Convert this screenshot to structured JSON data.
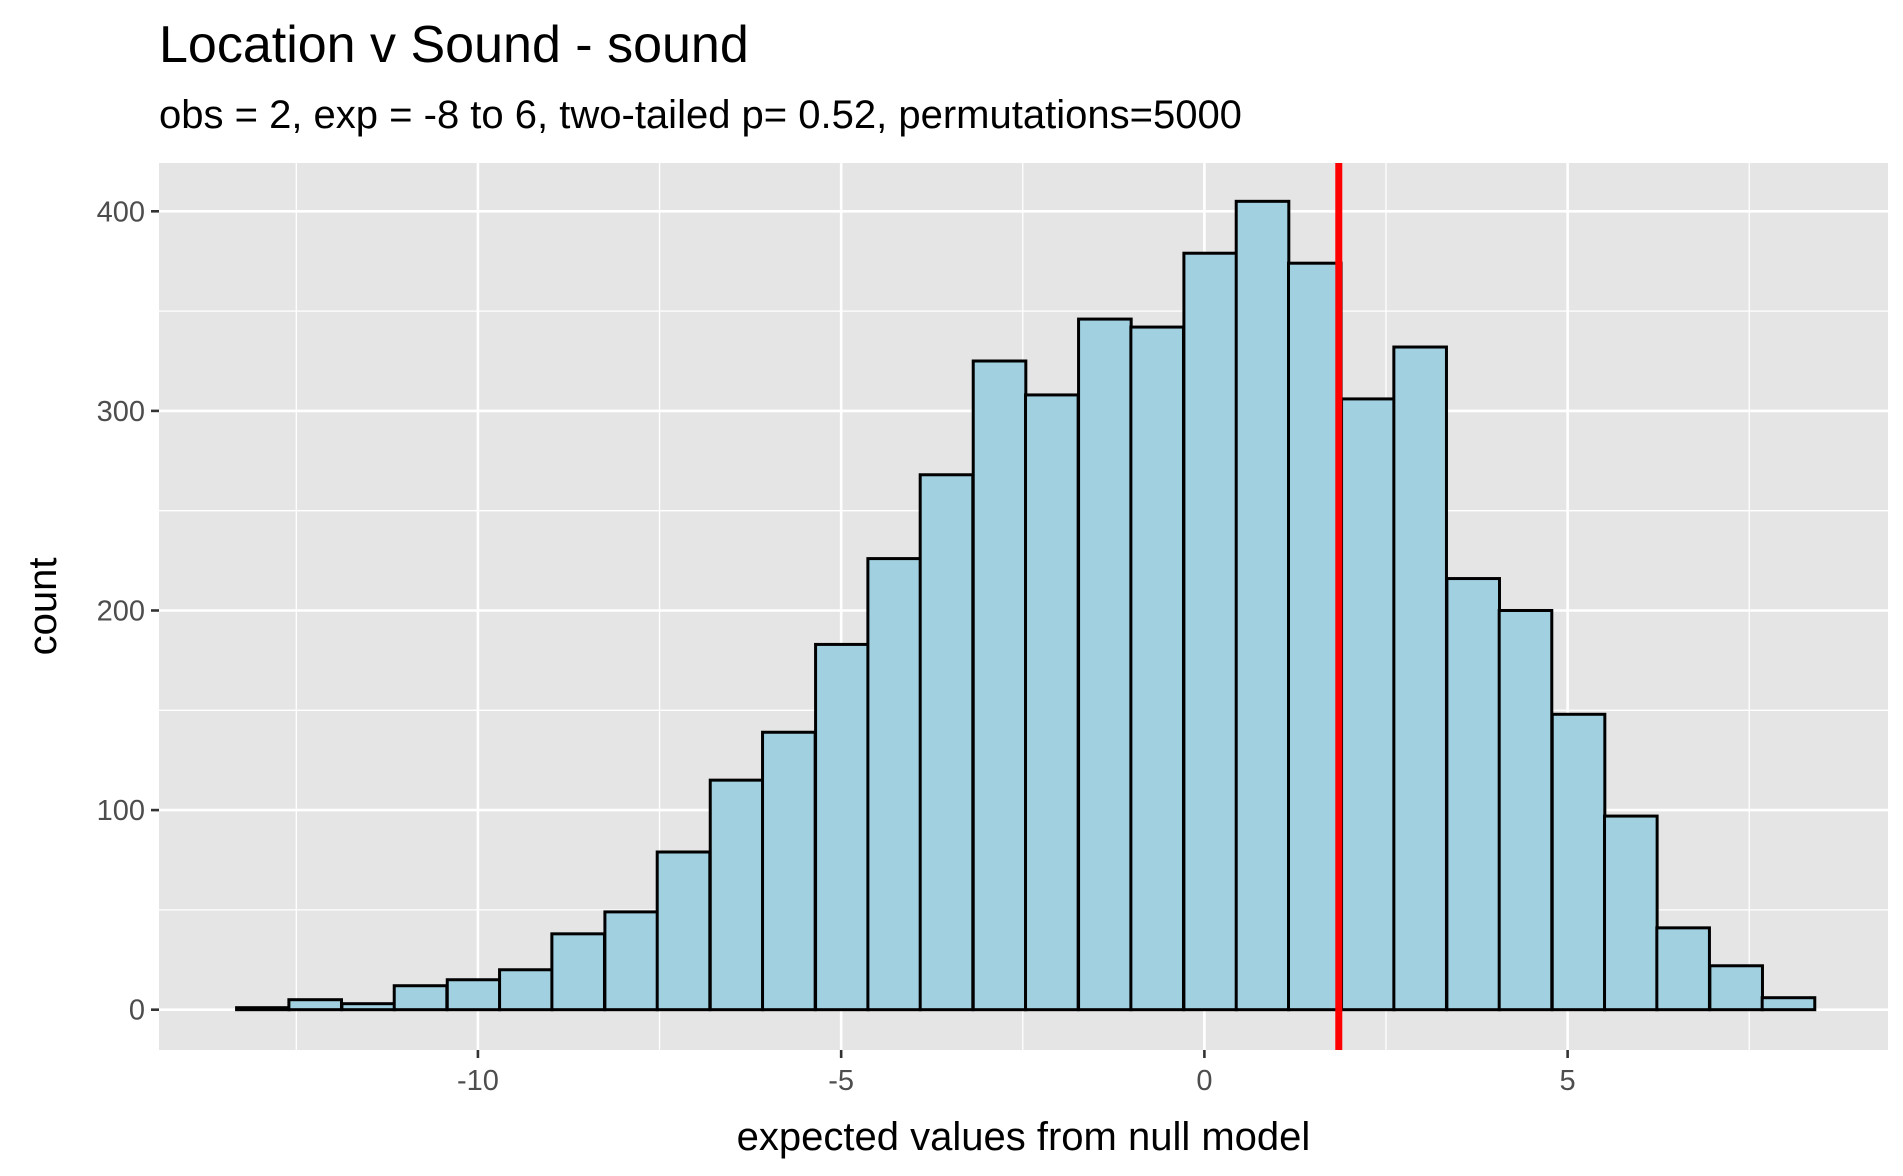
{
  "chart_data": {
    "type": "bar",
    "title": "Location v Sound - sound",
    "subtitle": "obs = 2, exp = -8 to 6, two-tailed p= 0.52, permutations=5000",
    "xlabel": "expected values from null model",
    "ylabel": "count",
    "xlim": [
      -14.39,
      9.41
    ],
    "ylim": [
      -20.2,
      424.2
    ],
    "x_ticks": [
      -10,
      -5,
      0,
      5
    ],
    "x_tick_labels": [
      "-10",
      "-5",
      "0",
      "5"
    ],
    "y_ticks": [
      0,
      100,
      200,
      300,
      400
    ],
    "y_tick_labels": [
      "0",
      "100",
      "200",
      "300",
      "400"
    ],
    "grid": true,
    "bin_width": 0.7241,
    "bin_centers": [
      -12.96,
      -12.24,
      -11.51,
      -10.79,
      -10.06,
      -9.34,
      -8.62,
      -7.89,
      -7.17,
      -6.44,
      -5.72,
      -4.99,
      -4.27,
      -3.55,
      -2.82,
      -2.1,
      -1.37,
      -0.65,
      0.08,
      0.8,
      1.52,
      2.25,
      2.97,
      3.7,
      4.42,
      5.15,
      5.87,
      6.59,
      7.32,
      8.04
    ],
    "counts": [
      1,
      5,
      3,
      12,
      15,
      20,
      38,
      49,
      79,
      115,
      139,
      183,
      226,
      268,
      325,
      308,
      346,
      342,
      379,
      405,
      374,
      306,
      332,
      216,
      200,
      148,
      97,
      41,
      22,
      6
    ],
    "observed_value": 1.85,
    "colors": {
      "panel": "#e5e5e5",
      "grid_major": "#ffffff",
      "bar_fill": "#a1d0e0",
      "bar_stroke": "#000000",
      "observed_line": "#ff0000"
    }
  }
}
